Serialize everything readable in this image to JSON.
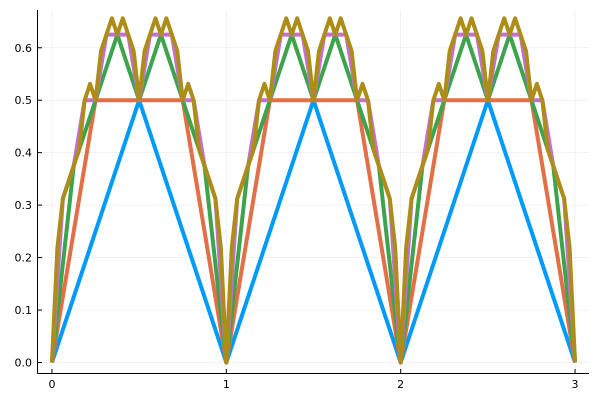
{
  "chart_data": {
    "type": "line",
    "title": "",
    "xlabel": "",
    "ylabel": "",
    "xlim": [
      -0.08,
      3.08
    ],
    "ylim": [
      -0.02,
      0.672
    ],
    "grid": true,
    "legend": "none",
    "x_ticks": [
      {
        "value": 0,
        "label": "0"
      },
      {
        "value": 1,
        "label": "1"
      },
      {
        "value": 2,
        "label": "2"
      },
      {
        "value": 3,
        "label": "3"
      }
    ],
    "y_ticks": [
      {
        "value": 0.0,
        "label": "0.0"
      },
      {
        "value": 0.1,
        "label": "0.1"
      },
      {
        "value": 0.2,
        "label": "0.2"
      },
      {
        "value": 0.3,
        "label": "0.3"
      },
      {
        "value": 0.4,
        "label": "0.4"
      },
      {
        "value": 0.5,
        "label": "0.5"
      },
      {
        "value": 0.6,
        "label": "0.6"
      }
    ],
    "series": [
      {
        "color": "#009af9",
        "x": [
          0,
          0.5,
          1,
          1.5,
          2,
          2.5,
          3
        ],
        "y": [
          0,
          0.5,
          0,
          0.5,
          0,
          0.5,
          0
        ]
      },
      {
        "color": "#e26f46",
        "x": [
          0,
          0.25,
          0.75,
          1,
          1.25,
          1.75,
          2,
          2.25,
          2.75,
          3
        ],
        "y": [
          0,
          0.5,
          0.5,
          0,
          0.5,
          0.5,
          0,
          0.5,
          0.5,
          0
        ]
      },
      {
        "color": "#3da44d",
        "x": [
          0,
          0.125,
          0.25,
          0.375,
          0.5,
          0.625,
          0.75,
          0.875,
          1,
          1.125,
          1.25,
          1.375,
          1.5,
          1.625,
          1.75,
          1.875,
          2,
          2.125,
          2.25,
          2.375,
          2.5,
          2.625,
          2.75,
          2.875,
          3
        ],
        "y": [
          0,
          0.375,
          0.5,
          0.625,
          0.5,
          0.625,
          0.5,
          0.375,
          0,
          0.375,
          0.5,
          0.625,
          0.5,
          0.625,
          0.5,
          0.375,
          0,
          0.375,
          0.5,
          0.625,
          0.5,
          0.625,
          0.5,
          0.375,
          0
        ]
      },
      {
        "color": "#c271d2",
        "x": [
          0,
          0.0625,
          0.125,
          0.1875,
          0.25,
          0.3125,
          0.375,
          0.4375,
          0.5,
          0.5625,
          0.625,
          0.6875,
          0.75,
          0.8125,
          0.875,
          0.9375,
          1,
          1.0625,
          1.125,
          1.1875,
          1.25,
          1.3125,
          1.375,
          1.4375,
          1.5,
          1.5625,
          1.625,
          1.6875,
          1.75,
          1.8125,
          1.875,
          1.9375,
          2,
          2.0625,
          2.125,
          2.1875,
          2.25,
          2.3125,
          2.375,
          2.4375,
          2.5,
          2.5625,
          2.625,
          2.6875,
          2.75,
          2.8125,
          2.875,
          2.9375,
          3
        ],
        "y": [
          0,
          0.3125,
          0.375,
          0.5,
          0.5,
          0.625,
          0.625,
          0.625,
          0.5,
          0.625,
          0.625,
          0.625,
          0.5,
          0.5,
          0.375,
          0.3125,
          0,
          0.3125,
          0.375,
          0.5,
          0.5,
          0.625,
          0.625,
          0.625,
          0.5,
          0.625,
          0.625,
          0.625,
          0.5,
          0.5,
          0.375,
          0.3125,
          0,
          0.3125,
          0.375,
          0.5,
          0.5,
          0.625,
          0.625,
          0.625,
          0.5,
          0.625,
          0.625,
          0.625,
          0.5,
          0.5,
          0.375,
          0.3125,
          0
        ]
      },
      {
        "color": "#ac8d18",
        "x": [
          0,
          0.03125,
          0.0625,
          0.09375,
          0.125,
          0.15625,
          0.1875,
          0.21875,
          0.25,
          0.28125,
          0.3125,
          0.34375,
          0.375,
          0.40625,
          0.4375,
          0.46875,
          0.5,
          0.53125,
          0.5625,
          0.59375,
          0.625,
          0.65625,
          0.6875,
          0.71875,
          0.75,
          0.78125,
          0.8125,
          0.84375,
          0.875,
          0.90625,
          0.9375,
          0.96875,
          1,
          1.03125,
          1.0625,
          1.09375,
          1.125,
          1.15625,
          1.1875,
          1.21875,
          1.25,
          1.28125,
          1.3125,
          1.34375,
          1.375,
          1.40625,
          1.4375,
          1.46875,
          1.5,
          1.53125,
          1.5625,
          1.59375,
          1.625,
          1.65625,
          1.6875,
          1.71875,
          1.75,
          1.78125,
          1.8125,
          1.84375,
          1.875,
          1.90625,
          1.9375,
          1.96875,
          2,
          2.03125,
          2.0625,
          2.09375,
          2.125,
          2.15625,
          2.1875,
          2.21875,
          2.25,
          2.28125,
          2.3125,
          2.34375,
          2.375,
          2.40625,
          2.4375,
          2.46875,
          2.5,
          2.53125,
          2.5625,
          2.59375,
          2.625,
          2.65625,
          2.6875,
          2.71875,
          2.75,
          2.78125,
          2.8125,
          2.84375,
          2.875,
          2.90625,
          2.9375,
          2.96875,
          3
        ],
        "y": [
          0,
          0.21875,
          0.3125,
          0.34375,
          0.375,
          0.40625,
          0.5,
          0.53125,
          0.5,
          0.59375,
          0.625,
          0.65625,
          0.625,
          0.65625,
          0.625,
          0.59375,
          0.5,
          0.59375,
          0.625,
          0.65625,
          0.625,
          0.65625,
          0.625,
          0.59375,
          0.5,
          0.53125,
          0.5,
          0.40625,
          0.375,
          0.34375,
          0.3125,
          0.21875,
          0,
          0.21875,
          0.3125,
          0.34375,
          0.375,
          0.40625,
          0.5,
          0.53125,
          0.5,
          0.59375,
          0.625,
          0.65625,
          0.625,
          0.65625,
          0.625,
          0.59375,
          0.5,
          0.59375,
          0.625,
          0.65625,
          0.625,
          0.65625,
          0.625,
          0.59375,
          0.5,
          0.53125,
          0.5,
          0.40625,
          0.375,
          0.34375,
          0.3125,
          0.21875,
          0,
          0.21875,
          0.3125,
          0.34375,
          0.375,
          0.40625,
          0.5,
          0.53125,
          0.5,
          0.59375,
          0.625,
          0.65625,
          0.625,
          0.65625,
          0.625,
          0.59375,
          0.5,
          0.59375,
          0.625,
          0.65625,
          0.625,
          0.65625,
          0.625,
          0.59375,
          0.5,
          0.53125,
          0.5,
          0.40625,
          0.375,
          0.34375,
          0.3125,
          0.21875,
          0
        ]
      }
    ]
  }
}
